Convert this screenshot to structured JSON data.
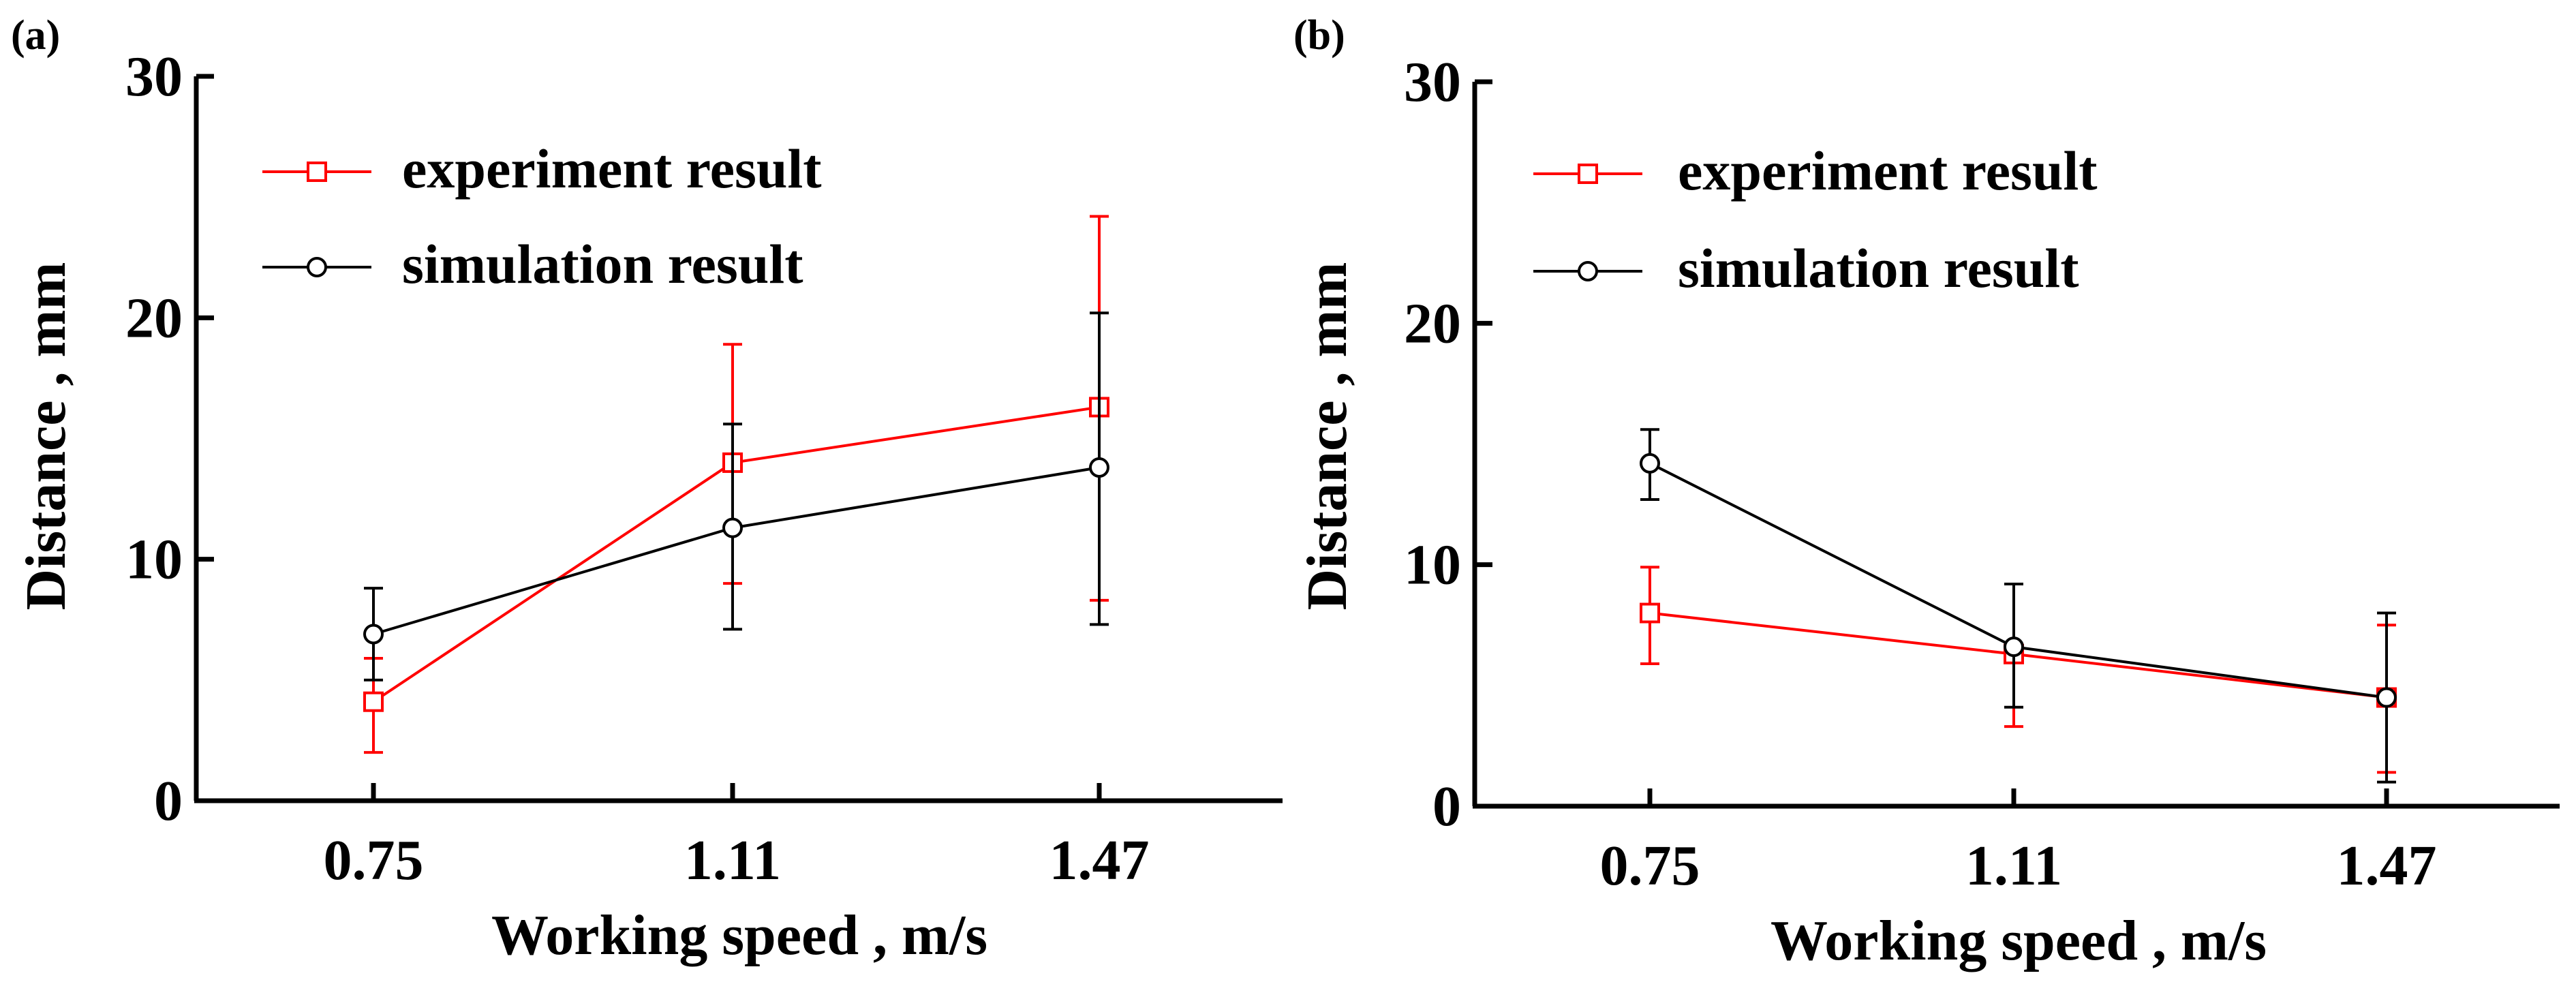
{
  "figure": {
    "panels": [
      "(a)",
      "(b)"
    ]
  },
  "chart_data": [
    {
      "type": "line",
      "panel_label": "(a)",
      "title": "",
      "xlabel": "Working speed , m/s",
      "ylabel": "Distance , mm",
      "categories": [
        "0.75",
        "1.11",
        "1.47"
      ],
      "ylim": [
        0,
        30
      ],
      "yticks": [
        "0",
        "10",
        "20",
        "30"
      ],
      "grid": false,
      "legend_position": "top-left",
      "series": [
        {
          "name": "experiment result",
          "color": "#ff0000",
          "marker": "square",
          "values": [
            4.1,
            14.0,
            16.3
          ],
          "err_low": [
            2.0,
            9.0,
            8.3
          ],
          "err_high": [
            5.9,
            18.9,
            24.2
          ]
        },
        {
          "name": "simulation result",
          "color": "#000000",
          "marker": "circle",
          "values": [
            6.9,
            11.3,
            13.8
          ],
          "err_low": [
            5.0,
            7.1,
            7.3
          ],
          "err_high": [
            8.8,
            15.6,
            20.2
          ]
        }
      ]
    },
    {
      "type": "line",
      "panel_label": "(b)",
      "title": "",
      "xlabel": "Working speed , m/s",
      "ylabel": "Distance , mm",
      "categories": [
        "0.75",
        "1.11",
        "1.47"
      ],
      "ylim": [
        0,
        30
      ],
      "yticks": [
        "0",
        "10",
        "20",
        "30"
      ],
      "grid": false,
      "legend_position": "top-left",
      "series": [
        {
          "name": "experiment result",
          "color": "#ff0000",
          "marker": "square",
          "values": [
            8.0,
            6.3,
            4.5
          ],
          "err_low": [
            5.9,
            3.3,
            1.4
          ],
          "err_high": [
            9.9,
            9.2,
            7.5
          ]
        },
        {
          "name": "simulation result",
          "color": "#000000",
          "marker": "circle",
          "values": [
            14.2,
            6.6,
            4.5
          ],
          "err_low": [
            12.7,
            4.1,
            1.0
          ],
          "err_high": [
            15.6,
            9.2,
            8.0
          ]
        }
      ]
    }
  ]
}
